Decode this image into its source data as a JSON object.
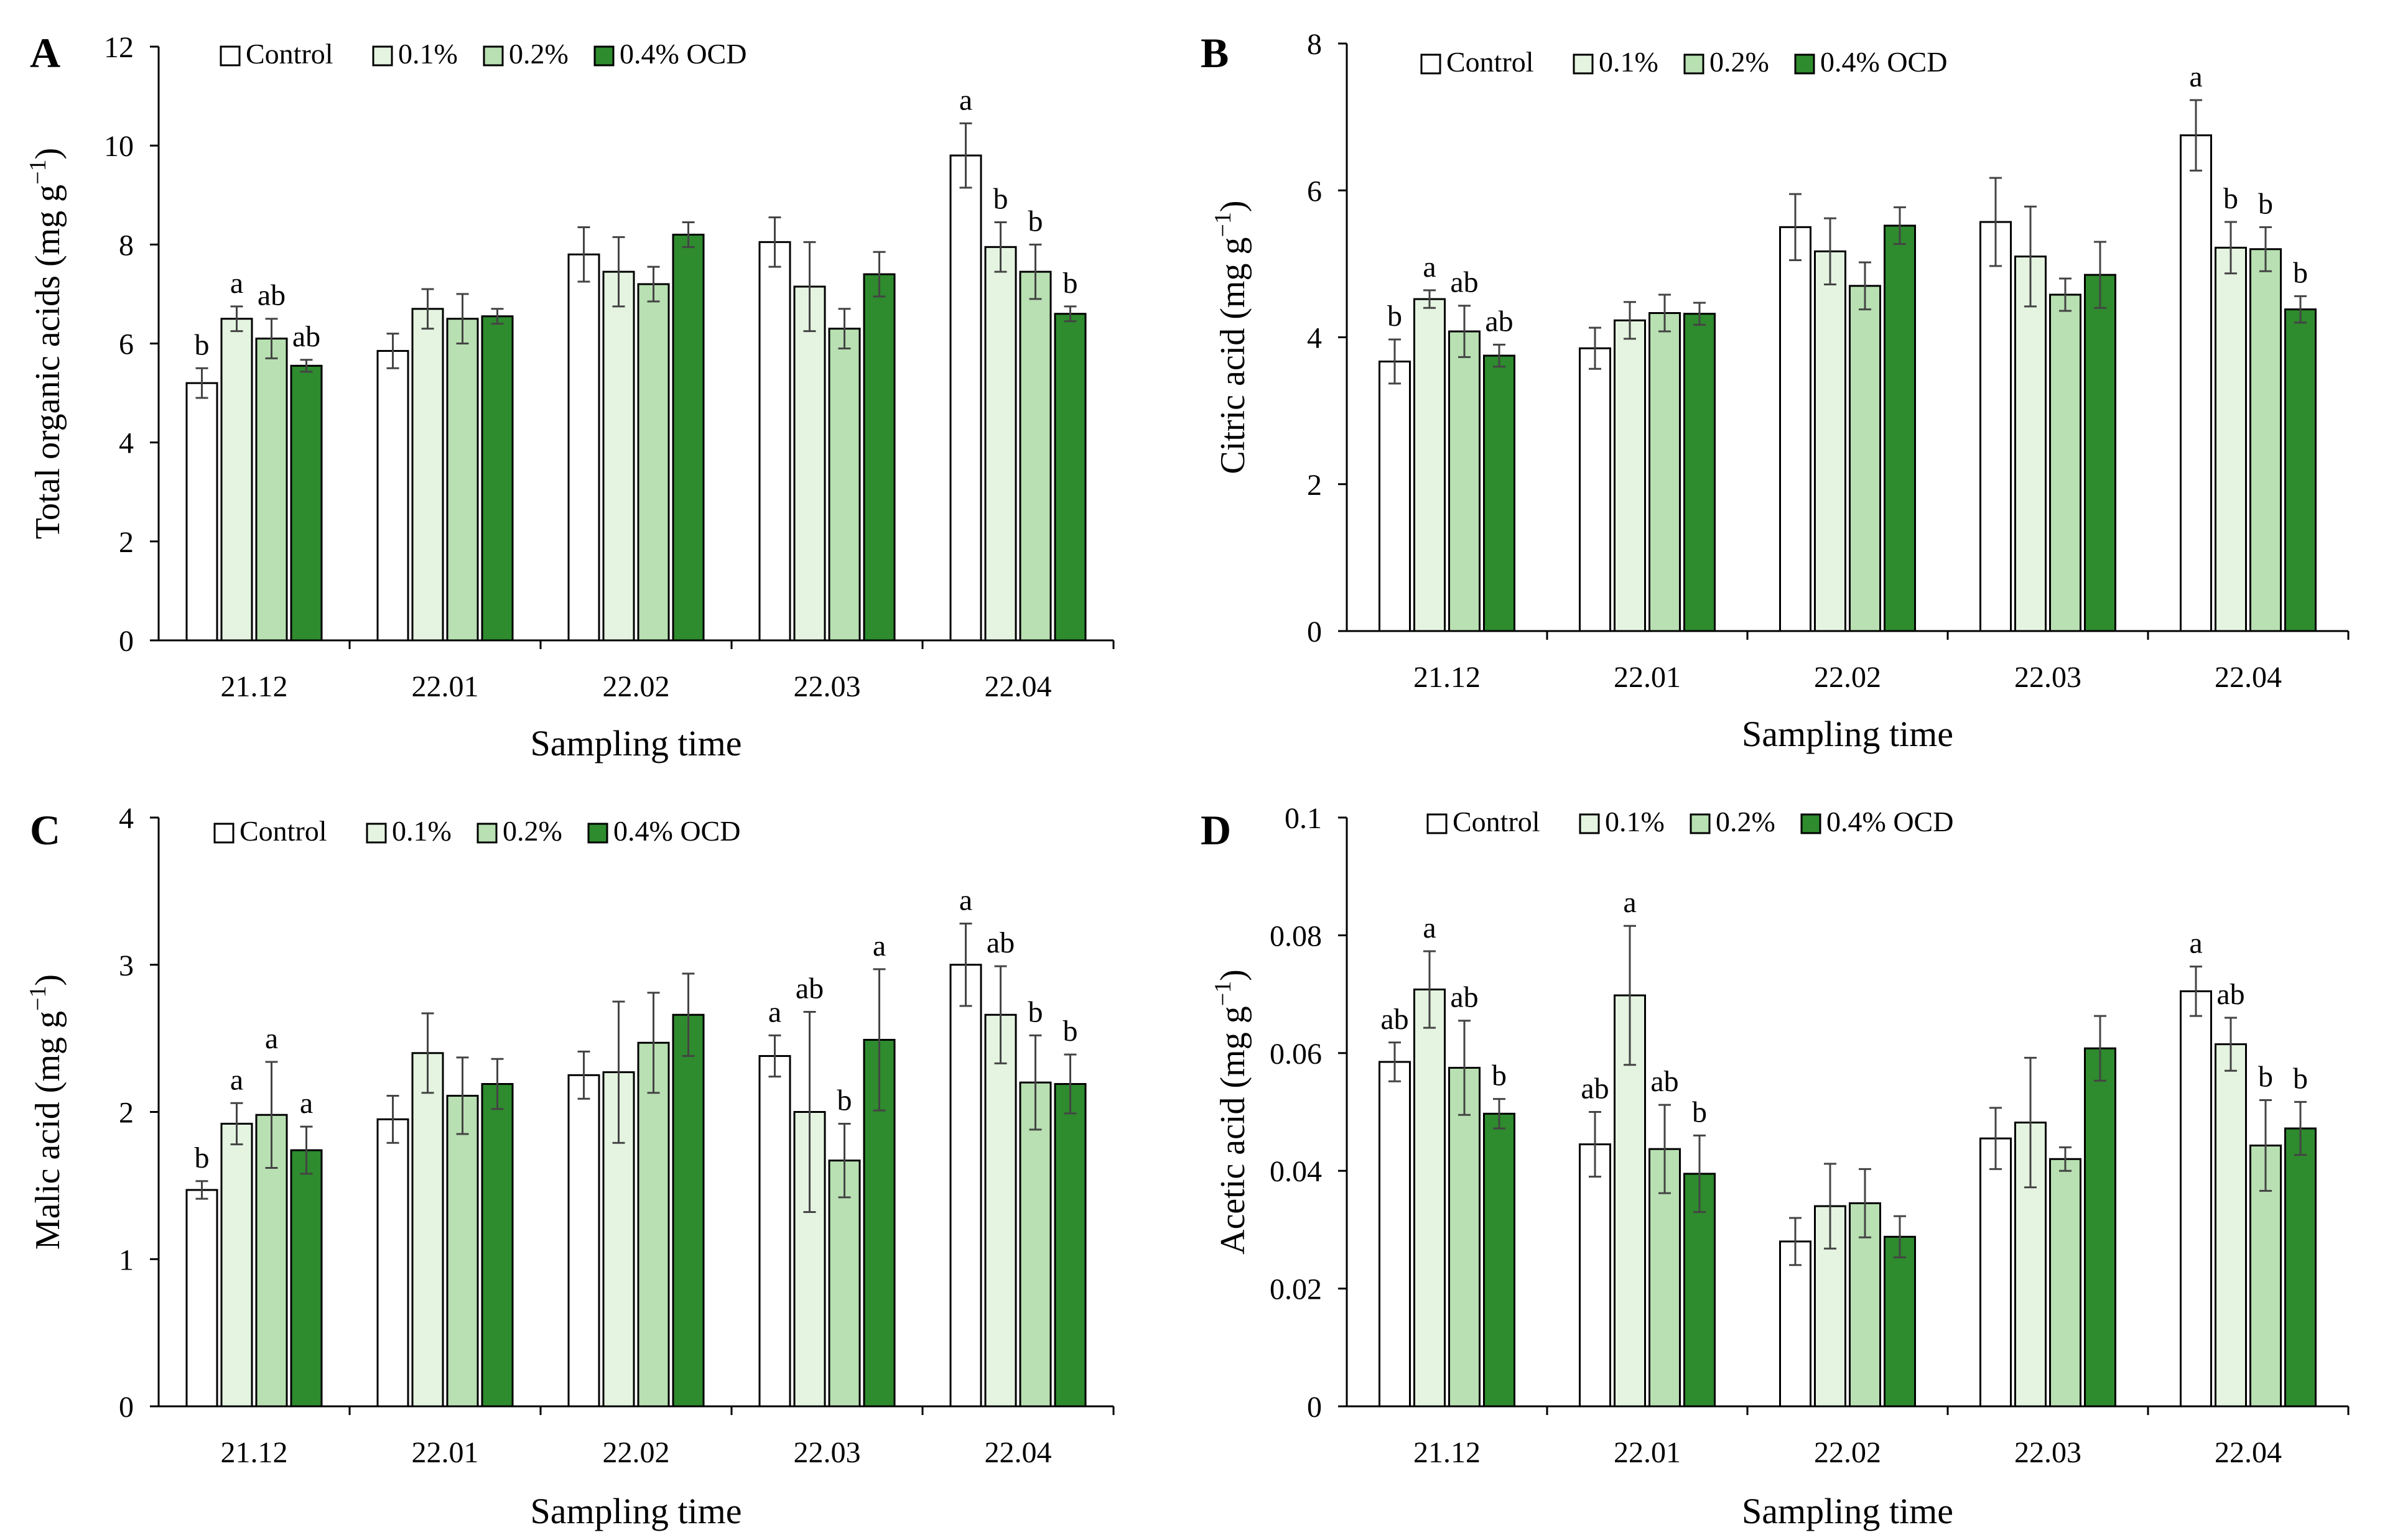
{
  "colors": {
    "Control": "#ffffff",
    "0.1%": "#e4f4e0",
    "0.2%": "#b8e0b2",
    "0.4% OCD": "#2e8b2e",
    "axis": "#000000",
    "error_bar": "#444444"
  },
  "chart_data": [
    {
      "panel": "A",
      "type": "bar",
      "xlabel": "Sampling time",
      "ylabel": "Total organic acids (mg g",
      "ylabel_sup": "−1",
      "ylabel_tail": ")",
      "categories": [
        "21.12",
        "22.01",
        "22.02",
        "22.03",
        "22.04"
      ],
      "ylim": [
        0,
        12
      ],
      "yticks": [
        0,
        2,
        4,
        6,
        8,
        10,
        12
      ],
      "ytick_labels": [
        "0",
        "2",
        "4",
        "6",
        "8",
        "10",
        "12"
      ],
      "legend_labels": [
        "Control",
        "0.1%",
        "0.2%",
        "0.4% OCD"
      ],
      "legend_position": "top-left",
      "series": [
        {
          "name": "Control",
          "values": [
            5.2,
            5.85,
            7.8,
            8.05,
            9.8
          ],
          "errors": [
            0.3,
            0.35,
            0.55,
            0.5,
            0.65
          ],
          "letters": [
            "b",
            "",
            "",
            "",
            "a"
          ]
        },
        {
          "name": "0.1%",
          "values": [
            6.5,
            6.7,
            7.45,
            7.15,
            7.95
          ],
          "errors": [
            0.25,
            0.4,
            0.7,
            0.9,
            0.5
          ],
          "letters": [
            "a",
            "",
            "",
            "",
            "b"
          ]
        },
        {
          "name": "0.2%",
          "values": [
            6.1,
            6.5,
            7.2,
            6.3,
            7.45
          ],
          "errors": [
            0.4,
            0.5,
            0.35,
            0.4,
            0.55
          ],
          "letters": [
            "ab",
            "",
            "",
            "",
            "b"
          ]
        },
        {
          "name": "0.4% OCD",
          "values": [
            5.55,
            6.55,
            8.2,
            7.4,
            6.6
          ],
          "errors": [
            0.12,
            0.15,
            0.25,
            0.45,
            0.15
          ],
          "letters": [
            "ab",
            "",
            "",
            "",
            "b"
          ]
        }
      ]
    },
    {
      "panel": "B",
      "type": "bar",
      "xlabel": "Sampling time",
      "ylabel": "Citric acid (mg g",
      "ylabel_sup": "−1",
      "ylabel_tail": ")",
      "categories": [
        "21.12",
        "22.01",
        "22.02",
        "22.03",
        "22.04"
      ],
      "ylim": [
        0,
        8
      ],
      "yticks": [
        0,
        2,
        4,
        6,
        8
      ],
      "ytick_labels": [
        "0",
        "2",
        "4",
        "6",
        "8"
      ],
      "legend_labels": [
        "Control",
        "0.1%",
        "0.2%",
        "0.4% OCD"
      ],
      "legend_position": "top-left",
      "series": [
        {
          "name": "Control",
          "values": [
            3.67,
            3.85,
            5.5,
            5.57,
            6.75
          ],
          "errors": [
            0.3,
            0.28,
            0.45,
            0.6,
            0.48
          ],
          "letters": [
            "b",
            "",
            "",
            "",
            "a"
          ]
        },
        {
          "name": "0.1%",
          "values": [
            4.52,
            4.23,
            5.17,
            5.1,
            5.22
          ],
          "errors": [
            0.12,
            0.25,
            0.45,
            0.68,
            0.35
          ],
          "letters": [
            "a",
            "",
            "",
            "",
            "b"
          ]
        },
        {
          "name": "0.2%",
          "values": [
            4.08,
            4.33,
            4.7,
            4.58,
            5.2
          ],
          "errors": [
            0.35,
            0.25,
            0.32,
            0.22,
            0.3
          ],
          "letters": [
            "ab",
            "",
            "",
            "",
            "b"
          ]
        },
        {
          "name": "0.4% OCD",
          "values": [
            3.75,
            4.32,
            5.52,
            4.85,
            4.38
          ],
          "errors": [
            0.15,
            0.15,
            0.25,
            0.45,
            0.18
          ],
          "letters": [
            "ab",
            "",
            "",
            "",
            "b"
          ]
        }
      ]
    },
    {
      "panel": "C",
      "type": "bar",
      "xlabel": "Sampling time",
      "ylabel": "Malic acid (mg g",
      "ylabel_sup": "−1",
      "ylabel_tail": ")",
      "categories": [
        "21.12",
        "22.01",
        "22.02",
        "22.03",
        "22.04"
      ],
      "ylim": [
        0,
        4
      ],
      "yticks": [
        0,
        1,
        2,
        3,
        4
      ],
      "ytick_labels": [
        "0",
        "1",
        "2",
        "3",
        "4"
      ],
      "legend_labels": [
        "Control",
        "0.1%",
        "0.2%",
        "0.4%  OCD"
      ],
      "legend_position": "top-left",
      "series": [
        {
          "name": "Control",
          "values": [
            1.47,
            1.95,
            2.25,
            2.38,
            3.0
          ],
          "errors": [
            0.06,
            0.16,
            0.16,
            0.14,
            0.28
          ],
          "letters": [
            "b",
            "",
            "",
            "a",
            "a"
          ]
        },
        {
          "name": "0.1%",
          "values": [
            1.92,
            2.4,
            2.27,
            2.0,
            2.66
          ],
          "errors": [
            0.14,
            0.27,
            0.48,
            0.68,
            0.33
          ],
          "letters": [
            "a",
            "",
            "",
            "ab",
            "ab"
          ]
        },
        {
          "name": "0.2%",
          "values": [
            1.98,
            2.11,
            2.47,
            1.67,
            2.2
          ],
          "errors": [
            0.36,
            0.26,
            0.34,
            0.25,
            0.32
          ],
          "letters": [
            "a",
            "",
            "",
            "b",
            "b"
          ]
        },
        {
          "name": "0.4% OCD",
          "values": [
            1.74,
            2.19,
            2.66,
            2.49,
            2.19
          ],
          "errors": [
            0.16,
            0.17,
            0.28,
            0.48,
            0.2
          ],
          "letters": [
            "a",
            "",
            "",
            "a",
            "b"
          ]
        }
      ]
    },
    {
      "panel": "D",
      "type": "bar",
      "xlabel": "Sampling time",
      "ylabel": "Acetic acid (mg g",
      "ylabel_sup": "−1",
      "ylabel_tail": ")",
      "categories": [
        "21.12",
        "22.01",
        "22.02",
        "22.03",
        "22.04"
      ],
      "ylim": [
        0,
        0.1
      ],
      "yticks": [
        0,
        0.02,
        0.04,
        0.06,
        0.08,
        0.1
      ],
      "ytick_labels": [
        "0",
        "0.02",
        "0.04",
        "0.06",
        "0.08",
        "0.1"
      ],
      "legend_labels": [
        "Control",
        "0.1%",
        "0.2%",
        "0.4% OCD"
      ],
      "legend_position": "top-left",
      "series": [
        {
          "name": "Control",
          "values": [
            0.0585,
            0.0445,
            0.028,
            0.0455,
            0.0705
          ],
          "errors": [
            0.0033,
            0.0055,
            0.004,
            0.0052,
            0.0042
          ],
          "letters": [
            "ab",
            "ab",
            "",
            "",
            "a"
          ]
        },
        {
          "name": "0.1%",
          "values": [
            0.0708,
            0.0698,
            0.034,
            0.0482,
            0.0615
          ],
          "errors": [
            0.0065,
            0.0118,
            0.0072,
            0.011,
            0.0045
          ],
          "letters": [
            "a",
            "a",
            "",
            "",
            "ab"
          ]
        },
        {
          "name": "0.2%",
          "values": [
            0.0575,
            0.0437,
            0.0345,
            0.042,
            0.0443
          ],
          "errors": [
            0.008,
            0.0075,
            0.0058,
            0.002,
            0.0077
          ],
          "letters": [
            "ab",
            "ab",
            "",
            "",
            "b"
          ]
        },
        {
          "name": "0.4% OCD",
          "values": [
            0.0497,
            0.0395,
            0.0288,
            0.0608,
            0.0472
          ],
          "errors": [
            0.0025,
            0.0065,
            0.0035,
            0.0055,
            0.0045
          ],
          "letters": [
            "b",
            "b",
            "",
            "",
            "b"
          ]
        }
      ]
    }
  ]
}
